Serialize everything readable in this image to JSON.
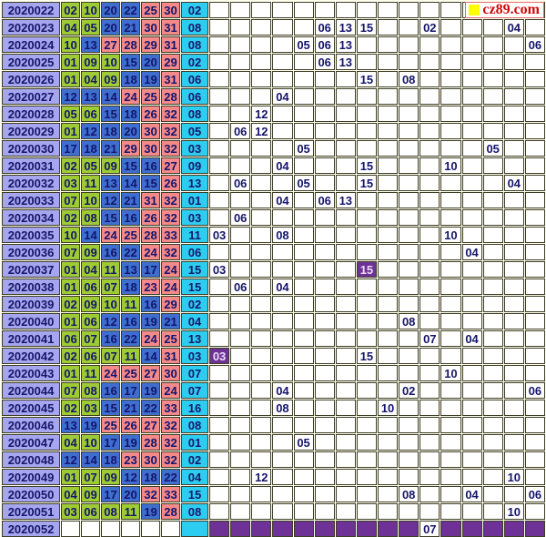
{
  "watermark": {
    "text": "cz89.com",
    "icon": "yellow-square"
  },
  "colors": {
    "cream": "#ffffef",
    "gridline": "#3e3e28",
    "digit": "#15156a",
    "lavender": "#a6a6ee",
    "green": "#9ccb34",
    "blue": "#3d6ed0",
    "salmon": "#f48989",
    "cyan": "#2ccdf0",
    "purple": "#6e3296",
    "purpletext": "#ecdcf8",
    "wmred": "#cf0a0a",
    "wmyellow": "#ffff00",
    "wmborder": "#e46a6a"
  },
  "chart_data": {
    "type": "table",
    "grid_columns": 16,
    "zones": {
      "green_max": 11,
      "blue_max": 22,
      "red_max": 33
    },
    "rows": [
      {
        "issue": "2020022",
        "reds": [
          "02",
          "10",
          "20",
          "22",
          "25",
          "30"
        ],
        "blue": "02",
        "marks": []
      },
      {
        "issue": "2020023",
        "reds": [
          "04",
          "05",
          "20",
          "21",
          "30",
          "31"
        ],
        "blue": "08",
        "marks": [
          {
            "col": 6,
            "val": "06"
          },
          {
            "col": 7,
            "val": "13"
          },
          {
            "col": 8,
            "val": "15"
          },
          {
            "col": 11,
            "val": "02"
          },
          {
            "col": 15,
            "val": "04"
          }
        ]
      },
      {
        "issue": "2020024",
        "reds": [
          "10",
          "13",
          "27",
          "28",
          "29",
          "31"
        ],
        "blue": "08",
        "marks": [
          {
            "col": 5,
            "val": "05"
          },
          {
            "col": 6,
            "val": "06"
          },
          {
            "col": 7,
            "val": "13"
          },
          {
            "col": 16,
            "val": "06"
          }
        ]
      },
      {
        "issue": "2020025",
        "reds": [
          "01",
          "09",
          "10",
          "15",
          "20",
          "29"
        ],
        "blue": "02",
        "marks": [
          {
            "col": 6,
            "val": "06"
          },
          {
            "col": 7,
            "val": "13"
          }
        ]
      },
      {
        "issue": "2020026",
        "reds": [
          "01",
          "04",
          "09",
          "18",
          "19",
          "31"
        ],
        "blue": "06",
        "marks": [
          {
            "col": 8,
            "val": "15"
          },
          {
            "col": 10,
            "val": "08"
          }
        ]
      },
      {
        "issue": "2020027",
        "reds": [
          "12",
          "13",
          "14",
          "24",
          "25",
          "28"
        ],
        "blue": "06",
        "marks": [
          {
            "col": 4,
            "val": "04"
          }
        ]
      },
      {
        "issue": "2020028",
        "reds": [
          "05",
          "06",
          "15",
          "18",
          "26",
          "32"
        ],
        "blue": "08",
        "marks": [
          {
            "col": 3,
            "val": "12"
          }
        ]
      },
      {
        "issue": "2020029",
        "reds": [
          "01",
          "12",
          "18",
          "20",
          "30",
          "32"
        ],
        "blue": "05",
        "marks": [
          {
            "col": 2,
            "val": "06"
          },
          {
            "col": 3,
            "val": "12"
          }
        ]
      },
      {
        "issue": "2020030",
        "reds": [
          "17",
          "18",
          "21",
          "29",
          "30",
          "32"
        ],
        "blue": "03",
        "marks": [
          {
            "col": 5,
            "val": "05"
          },
          {
            "col": 14,
            "val": "05"
          }
        ]
      },
      {
        "issue": "2020031",
        "reds": [
          "02",
          "05",
          "09",
          "15",
          "16",
          "27"
        ],
        "blue": "09",
        "marks": [
          {
            "col": 4,
            "val": "04"
          },
          {
            "col": 8,
            "val": "15"
          },
          {
            "col": 12,
            "val": "10"
          }
        ]
      },
      {
        "issue": "2020032",
        "reds": [
          "03",
          "11",
          "13",
          "14",
          "15",
          "26"
        ],
        "blue": "13",
        "marks": [
          {
            "col": 2,
            "val": "06"
          },
          {
            "col": 5,
            "val": "05"
          },
          {
            "col": 8,
            "val": "15"
          },
          {
            "col": 15,
            "val": "04"
          }
        ]
      },
      {
        "issue": "2020033",
        "reds": [
          "07",
          "10",
          "12",
          "21",
          "31",
          "32"
        ],
        "blue": "01",
        "marks": [
          {
            "col": 4,
            "val": "04"
          },
          {
            "col": 6,
            "val": "06"
          },
          {
            "col": 7,
            "val": "13"
          }
        ]
      },
      {
        "issue": "2020034",
        "reds": [
          "02",
          "08",
          "15",
          "16",
          "26",
          "32"
        ],
        "blue": "03",
        "marks": [
          {
            "col": 2,
            "val": "06"
          }
        ]
      },
      {
        "issue": "2020035",
        "reds": [
          "10",
          "14",
          "24",
          "25",
          "28",
          "33"
        ],
        "blue": "11",
        "marks": [
          {
            "col": 1,
            "val": "03"
          },
          {
            "col": 4,
            "val": "08"
          },
          {
            "col": 12,
            "val": "10"
          }
        ]
      },
      {
        "issue": "2020036",
        "reds": [
          "07",
          "09",
          "16",
          "22",
          "24",
          "32"
        ],
        "blue": "06",
        "marks": [
          {
            "col": 13,
            "val": "04"
          }
        ]
      },
      {
        "issue": "2020037",
        "reds": [
          "01",
          "04",
          "11",
          "13",
          "17",
          "24"
        ],
        "blue": "15",
        "marks": [
          {
            "col": 1,
            "val": "03"
          },
          {
            "col": 8,
            "val": "15",
            "hit": true
          }
        ]
      },
      {
        "issue": "2020038",
        "reds": [
          "01",
          "06",
          "07",
          "18",
          "23",
          "24"
        ],
        "blue": "15",
        "marks": [
          {
            "col": 2,
            "val": "06"
          },
          {
            "col": 4,
            "val": "04"
          }
        ]
      },
      {
        "issue": "2020039",
        "reds": [
          "02",
          "09",
          "10",
          "11",
          "16",
          "29"
        ],
        "blue": "02",
        "marks": []
      },
      {
        "issue": "2020040",
        "reds": [
          "01",
          "06",
          "12",
          "16",
          "19",
          "21"
        ],
        "blue": "04",
        "marks": [
          {
            "col": 10,
            "val": "08"
          }
        ]
      },
      {
        "issue": "2020041",
        "reds": [
          "06",
          "07",
          "16",
          "22",
          "24",
          "25"
        ],
        "blue": "13",
        "marks": [
          {
            "col": 11,
            "val": "07"
          },
          {
            "col": 13,
            "val": "04"
          }
        ]
      },
      {
        "issue": "2020042",
        "reds": [
          "02",
          "06",
          "07",
          "11",
          "14",
          "31"
        ],
        "blue": "03",
        "marks": [
          {
            "col": 1,
            "val": "03",
            "hit": true
          },
          {
            "col": 8,
            "val": "15"
          }
        ]
      },
      {
        "issue": "2020043",
        "reds": [
          "01",
          "11",
          "24",
          "25",
          "27",
          "30"
        ],
        "blue": "07",
        "marks": [
          {
            "col": 12,
            "val": "10"
          }
        ]
      },
      {
        "issue": "2020044",
        "reds": [
          "07",
          "08",
          "16",
          "17",
          "19",
          "24"
        ],
        "blue": "07",
        "marks": [
          {
            "col": 4,
            "val": "04"
          },
          {
            "col": 10,
            "val": "02"
          },
          {
            "col": 16,
            "val": "06"
          }
        ]
      },
      {
        "issue": "2020045",
        "reds": [
          "02",
          "03",
          "15",
          "21",
          "22",
          "33"
        ],
        "blue": "16",
        "marks": [
          {
            "col": 4,
            "val": "08"
          },
          {
            "col": 9,
            "val": "10"
          }
        ]
      },
      {
        "issue": "2020046",
        "reds": [
          "13",
          "19",
          "25",
          "26",
          "27",
          "32"
        ],
        "blue": "08",
        "marks": []
      },
      {
        "issue": "2020047",
        "reds": [
          "04",
          "10",
          "17",
          "19",
          "28",
          "32"
        ],
        "blue": "01",
        "marks": [
          {
            "col": 5,
            "val": "05"
          }
        ]
      },
      {
        "issue": "2020048",
        "reds": [
          "12",
          "14",
          "18",
          "23",
          "30",
          "32"
        ],
        "blue": "02",
        "marks": []
      },
      {
        "issue": "2020049",
        "reds": [
          "01",
          "07",
          "09",
          "12",
          "18",
          "22"
        ],
        "blue": "04",
        "marks": [
          {
            "col": 3,
            "val": "12"
          },
          {
            "col": 15,
            "val": "10"
          }
        ]
      },
      {
        "issue": "2020050",
        "reds": [
          "04",
          "09",
          "17",
          "20",
          "32",
          "33"
        ],
        "blue": "15",
        "marks": [
          {
            "col": 10,
            "val": "08"
          },
          {
            "col": 13,
            "val": "04"
          },
          {
            "col": 16,
            "val": "06"
          }
        ]
      },
      {
        "issue": "2020051",
        "reds": [
          "03",
          "06",
          "08",
          "11",
          "19",
          "28"
        ],
        "blue": "08",
        "marks": [
          {
            "col": 15,
            "val": "10"
          }
        ]
      },
      {
        "issue": "2020052",
        "reds": [],
        "blue": "",
        "predict": true,
        "marks": [
          {
            "col": 11,
            "val": "07"
          }
        ]
      }
    ]
  }
}
